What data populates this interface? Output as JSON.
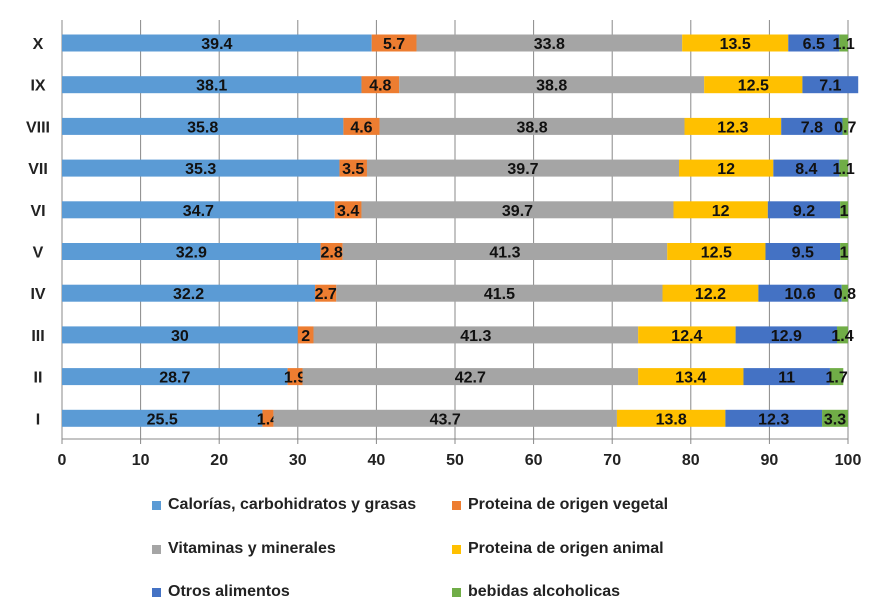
{
  "chart_data": {
    "type": "bar",
    "orientation": "horizontal",
    "stacked": true,
    "categories": [
      "I",
      "II",
      "III",
      "IV",
      "V",
      "VI",
      "VII",
      "VIII",
      "IX",
      "X"
    ],
    "xlim": [
      0,
      100
    ],
    "xticks": [
      0,
      10,
      20,
      30,
      40,
      50,
      60,
      70,
      80,
      90,
      100
    ],
    "grid": true,
    "legend_position": "bottom",
    "series": [
      {
        "name": "Calorías, carbohidratos y grasas",
        "color": "#5b9bd5",
        "values": [
          25.5,
          28.7,
          30,
          32.2,
          32.9,
          34.7,
          35.3,
          35.8,
          38.1,
          39.4
        ]
      },
      {
        "name": "Proteina de origen vegetal",
        "color": "#ed7d31",
        "values": [
          1.4,
          1.9,
          2,
          2.7,
          2.8,
          3.4,
          3.5,
          4.6,
          4.8,
          5.7
        ]
      },
      {
        "name": "Vitaminas y minerales",
        "color": "#a5a5a5",
        "values": [
          43.7,
          42.7,
          41.3,
          41.5,
          41.3,
          39.7,
          39.7,
          38.8,
          38.8,
          33.8
        ]
      },
      {
        "name": "Proteina de origen animal",
        "color": "#ffc000",
        "values": [
          13.8,
          13.4,
          12.4,
          12.2,
          12.5,
          12,
          12,
          12.3,
          12.5,
          13.5
        ]
      },
      {
        "name": "Otros alimentos",
        "color": "#4472c4",
        "values": [
          12.3,
          11,
          12.9,
          10.6,
          9.5,
          9.2,
          8.4,
          7.8,
          7.1,
          6.5
        ]
      },
      {
        "name": "bebidas alcoholicas",
        "color": "#70ad47",
        "values": [
          3.3,
          1.7,
          1.4,
          0.8,
          1,
          1,
          1.1,
          0.7,
          null,
          1.1
        ]
      }
    ]
  }
}
